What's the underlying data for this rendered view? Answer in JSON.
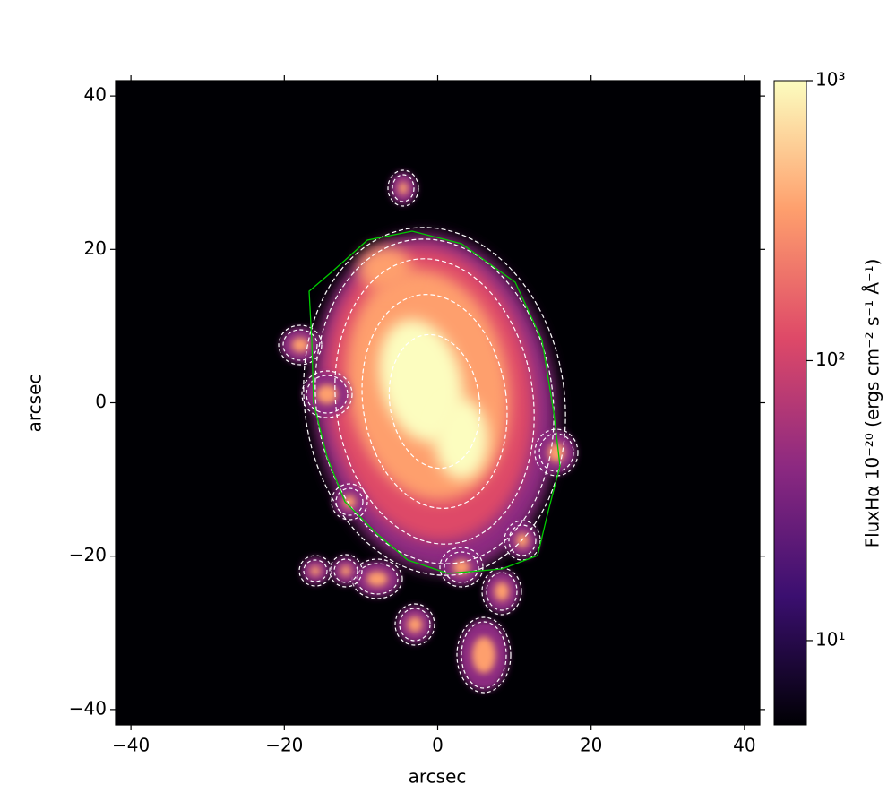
{
  "chart_data": {
    "type": "image",
    "xlabel": "arcsec",
    "ylabel": "arcsec",
    "xlim": [
      -42,
      42
    ],
    "ylim": [
      -42,
      42
    ],
    "xticks": [
      {
        "value": -40,
        "label": "−40"
      },
      {
        "value": -20,
        "label": "−20"
      },
      0,
      20,
      40
    ],
    "yticks": [
      {
        "value": -40,
        "label": "−40"
      },
      {
        "value": -20,
        "label": "−20"
      },
      0,
      20,
      40
    ],
    "colorbar": {
      "label": "FluxHα 10⁻²⁰ (ergs cm⁻² s⁻¹ Å⁻¹)",
      "log_scale": true,
      "clim": [
        5,
        1000
      ],
      "ticks": [
        {
          "value": 10,
          "label": "10¹"
        },
        {
          "value": 100,
          "label": "10²"
        },
        {
          "value": 1000,
          "label": "10³"
        }
      ],
      "colormap": [
        "#000004",
        "#3b0f70",
        "#8c2981",
        "#de4968",
        "#fe9f6d",
        "#fcfdbf"
      ]
    },
    "contour_color": "#ffffff",
    "outline_color": "#00cc00"
  }
}
